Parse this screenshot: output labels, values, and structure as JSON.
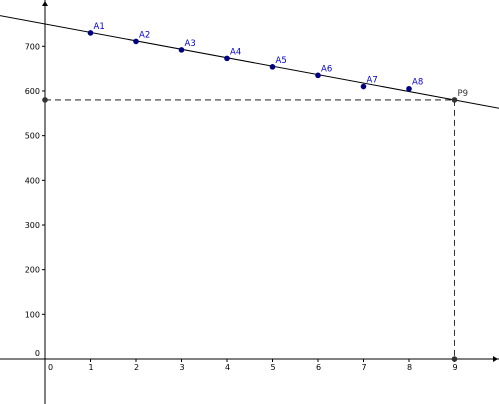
{
  "chart_data": {
    "type": "scatter",
    "xlim": [
      -1,
      10
    ],
    "ylim": [
      -100,
      790
    ],
    "x_ticks": [
      "0",
      "1",
      "2",
      "3",
      "4",
      "5",
      "6",
      "7",
      "8",
      "9"
    ],
    "y_ticks": [
      "0",
      "100",
      "200",
      "300",
      "400",
      "500",
      "600",
      "700"
    ],
    "grid": false,
    "points": [
      {
        "label": "A1",
        "x": 1,
        "y": 730
      },
      {
        "label": "A2",
        "x": 2,
        "y": 711
      },
      {
        "label": "A3",
        "x": 3,
        "y": 692
      },
      {
        "label": "A4",
        "x": 4,
        "y": 673
      },
      {
        "label": "A5",
        "x": 5,
        "y": 654
      },
      {
        "label": "A6",
        "x": 6,
        "y": 635
      },
      {
        "label": "A7",
        "x": 7,
        "y": 610
      },
      {
        "label": "A8",
        "x": 8,
        "y": 605
      }
    ],
    "special_point": {
      "label": "P9",
      "x": 9,
      "y": 580
    },
    "fit_line": {
      "slope": -18.9,
      "intercept": 750
    },
    "colors": {
      "points": "#000080",
      "labels": "#0000cc",
      "special": "#333333",
      "axes": "#000000"
    }
  }
}
